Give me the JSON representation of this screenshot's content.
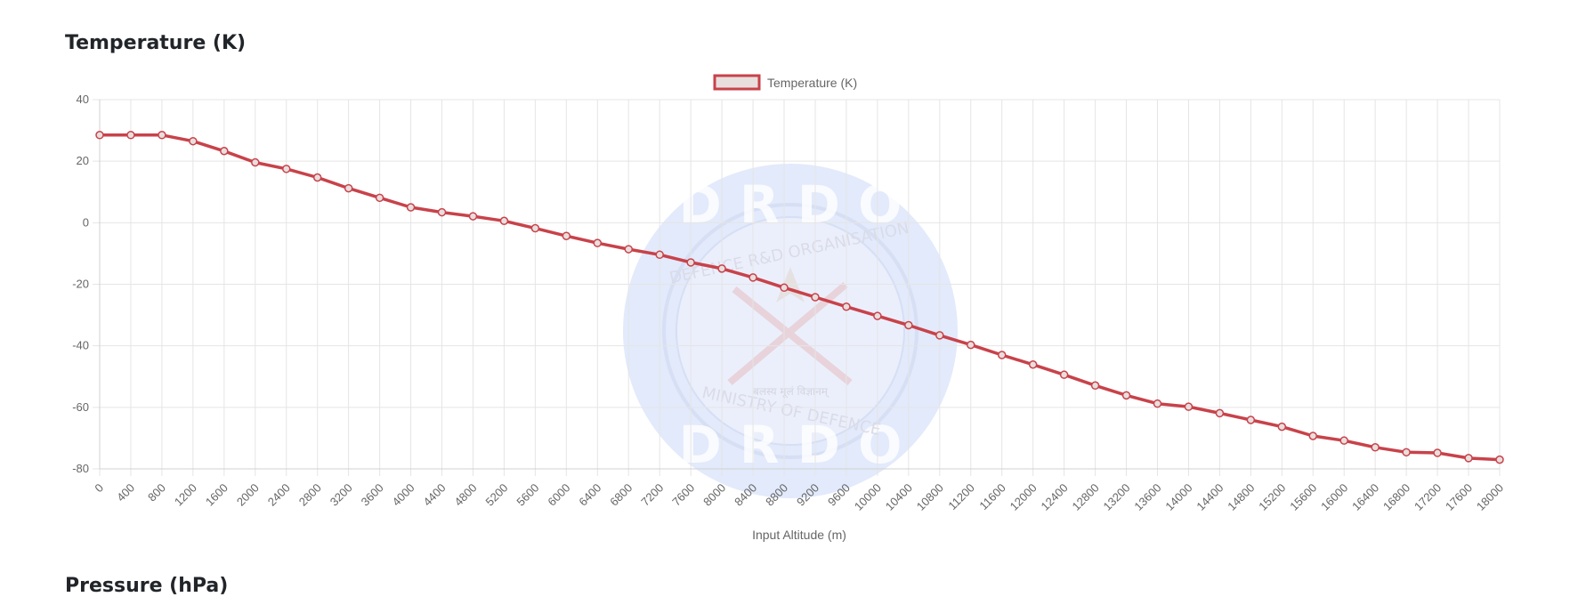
{
  "sections": {
    "temperature_title": "Temperature (K)",
    "pressure_title": "Pressure (hPa)"
  },
  "colors": {
    "series_line": "#c8424a",
    "legend_fill": "#e8dede",
    "grid": "#e5e5e5",
    "watermark": "#dfe8fb"
  },
  "watermark": {
    "top_text": "D R D O",
    "bottom_text": "D R D O",
    "ring_top_text": "DEFENCE R&D ORGANISATION",
    "ring_bottom_text": "MINISTRY OF DEFENCE",
    "hindi_text": "बलस्य मूलं विज्ञानम्"
  },
  "chart_data": {
    "type": "line",
    "legend_position": "top",
    "grid": true,
    "xlabel": "Input Altitude (m)",
    "ylabel": "",
    "ylim": [
      -80,
      40
    ],
    "yticks": [
      40,
      20,
      0,
      -20,
      -40,
      -60,
      -80
    ],
    "x": [
      0,
      400,
      800,
      1200,
      1600,
      2000,
      2400,
      2800,
      3200,
      3600,
      4000,
      4400,
      4800,
      5200,
      5600,
      6000,
      6400,
      6800,
      7200,
      7600,
      8000,
      8400,
      8800,
      9200,
      9600,
      10000,
      10400,
      10800,
      11200,
      11600,
      12000,
      12400,
      12800,
      13200,
      13600,
      14000,
      14400,
      14800,
      15200,
      15600,
      16000,
      16400,
      16800,
      17200,
      17600,
      18000
    ],
    "series": [
      {
        "name": "Temperature (K)",
        "values": [
          28.5,
          28.5,
          28.5,
          26.5,
          23.3,
          19.6,
          17.5,
          14.7,
          11.2,
          8.1,
          5.0,
          3.4,
          2.1,
          0.6,
          -1.8,
          -4.3,
          -6.6,
          -8.6,
          -10.4,
          -12.9,
          -14.9,
          -17.8,
          -21.1,
          -24.2,
          -27.3,
          -30.3,
          -33.3,
          -36.6,
          -39.7,
          -43.0,
          -46.1,
          -49.4,
          -52.9,
          -56.1,
          -58.8,
          -59.8,
          -61.9,
          -64.1,
          -66.3,
          -69.3,
          -70.8,
          -73.0,
          -74.6,
          -74.8,
          -76.5,
          -77.0
        ]
      }
    ]
  }
}
